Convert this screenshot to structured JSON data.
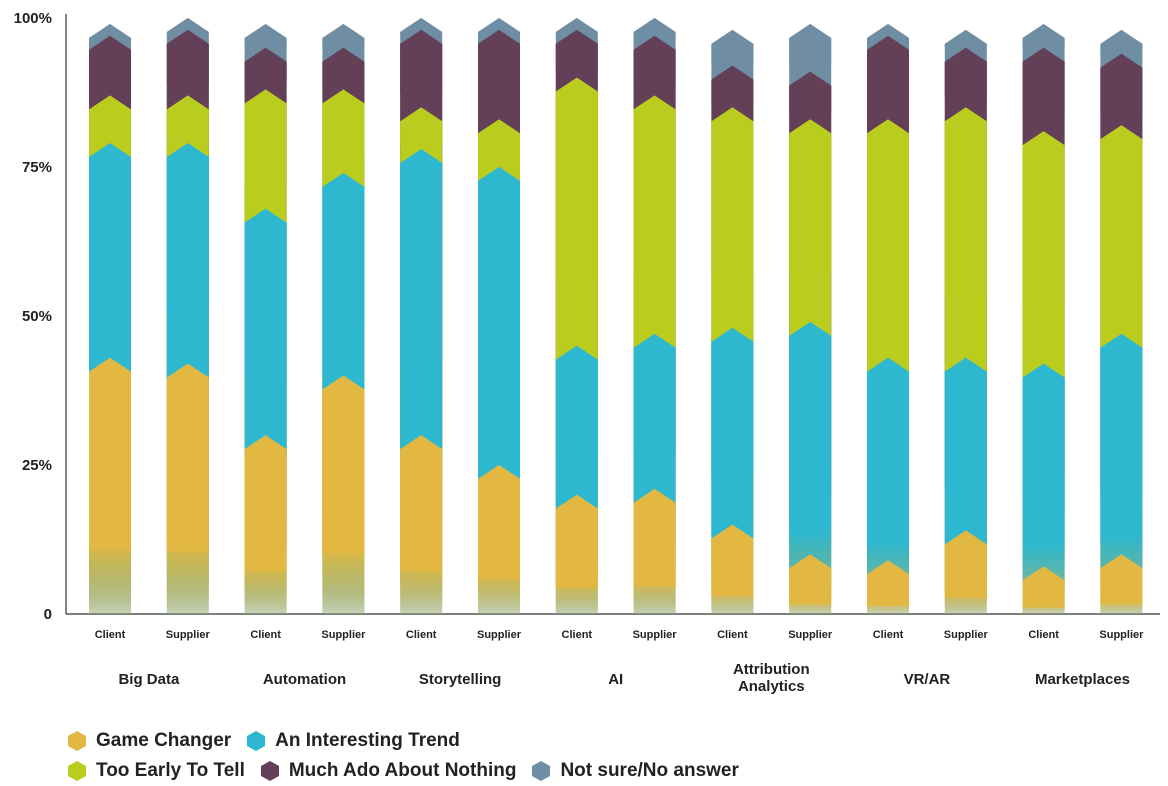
{
  "chart_data": {
    "type": "bar",
    "stacked": true,
    "yticks": [
      "0",
      "25%",
      "50%",
      "75%",
      "100%"
    ],
    "ylim": [
      0,
      100
    ],
    "groups": [
      {
        "name": "Big Data",
        "lines": [
          "Big Data"
        ],
        "bars": [
          {
            "label": "Client",
            "values": [
              43,
              36,
              8,
              10,
              2
            ]
          },
          {
            "label": "Supplier",
            "values": [
              42,
              37,
              8,
              11,
              2
            ]
          }
        ]
      },
      {
        "name": "Automation",
        "lines": [
          "Automation"
        ],
        "bars": [
          {
            "label": "Client",
            "values": [
              30,
              38,
              20,
              7,
              4
            ]
          },
          {
            "label": "Supplier",
            "values": [
              40,
              34,
              14,
              7,
              4
            ]
          }
        ]
      },
      {
        "name": "Storytelling",
        "lines": [
          "Storytelling"
        ],
        "bars": [
          {
            "label": "Client",
            "values": [
              30,
              48,
              7,
              13,
              2
            ]
          },
          {
            "label": "Supplier",
            "values": [
              25,
              50,
              8,
              15,
              2
            ]
          }
        ]
      },
      {
        "name": "AI",
        "lines": [
          "AI"
        ],
        "bars": [
          {
            "label": "Client",
            "values": [
              20,
              25,
              45,
              8,
              2
            ]
          },
          {
            "label": "Supplier",
            "values": [
              21,
              26,
              40,
              10,
              3
            ]
          }
        ]
      },
      {
        "name": "Attribution Analytics",
        "lines": [
          "Attribution",
          "Analytics"
        ],
        "bars": [
          {
            "label": "Client",
            "values": [
              15,
              33,
              37,
              7,
              6
            ]
          },
          {
            "label": "Supplier",
            "values": [
              10,
              39,
              34,
              8,
              8
            ]
          }
        ]
      },
      {
        "name": "VR/AR",
        "lines": [
          "VR/AR"
        ],
        "bars": [
          {
            "label": "Client",
            "values": [
              9,
              34,
              40,
              14,
              2
            ]
          },
          {
            "label": "Supplier",
            "values": [
              14,
              29,
              42,
              10,
              3
            ]
          }
        ]
      },
      {
        "name": "Marketplaces",
        "lines": [
          "Marketplaces"
        ],
        "bars": [
          {
            "label": "Client",
            "values": [
              8,
              34,
              39,
              14,
              4
            ]
          },
          {
            "label": "Supplier",
            "values": [
              10,
              37,
              35,
              12,
              4
            ]
          }
        ]
      }
    ],
    "series": [
      {
        "name": "Game Changer",
        "color": "#E2B842"
      },
      {
        "name": "An Interesting Trend",
        "color": "#2EB8CF"
      },
      {
        "name": "Too Early To Tell",
        "color": "#BACD1E"
      },
      {
        "name": "Much Ado About Nothing",
        "color": "#633F58"
      },
      {
        "name": "Not sure/No answer",
        "color": "#6F8EA3"
      }
    ],
    "legend_position": "bottom-left"
  }
}
